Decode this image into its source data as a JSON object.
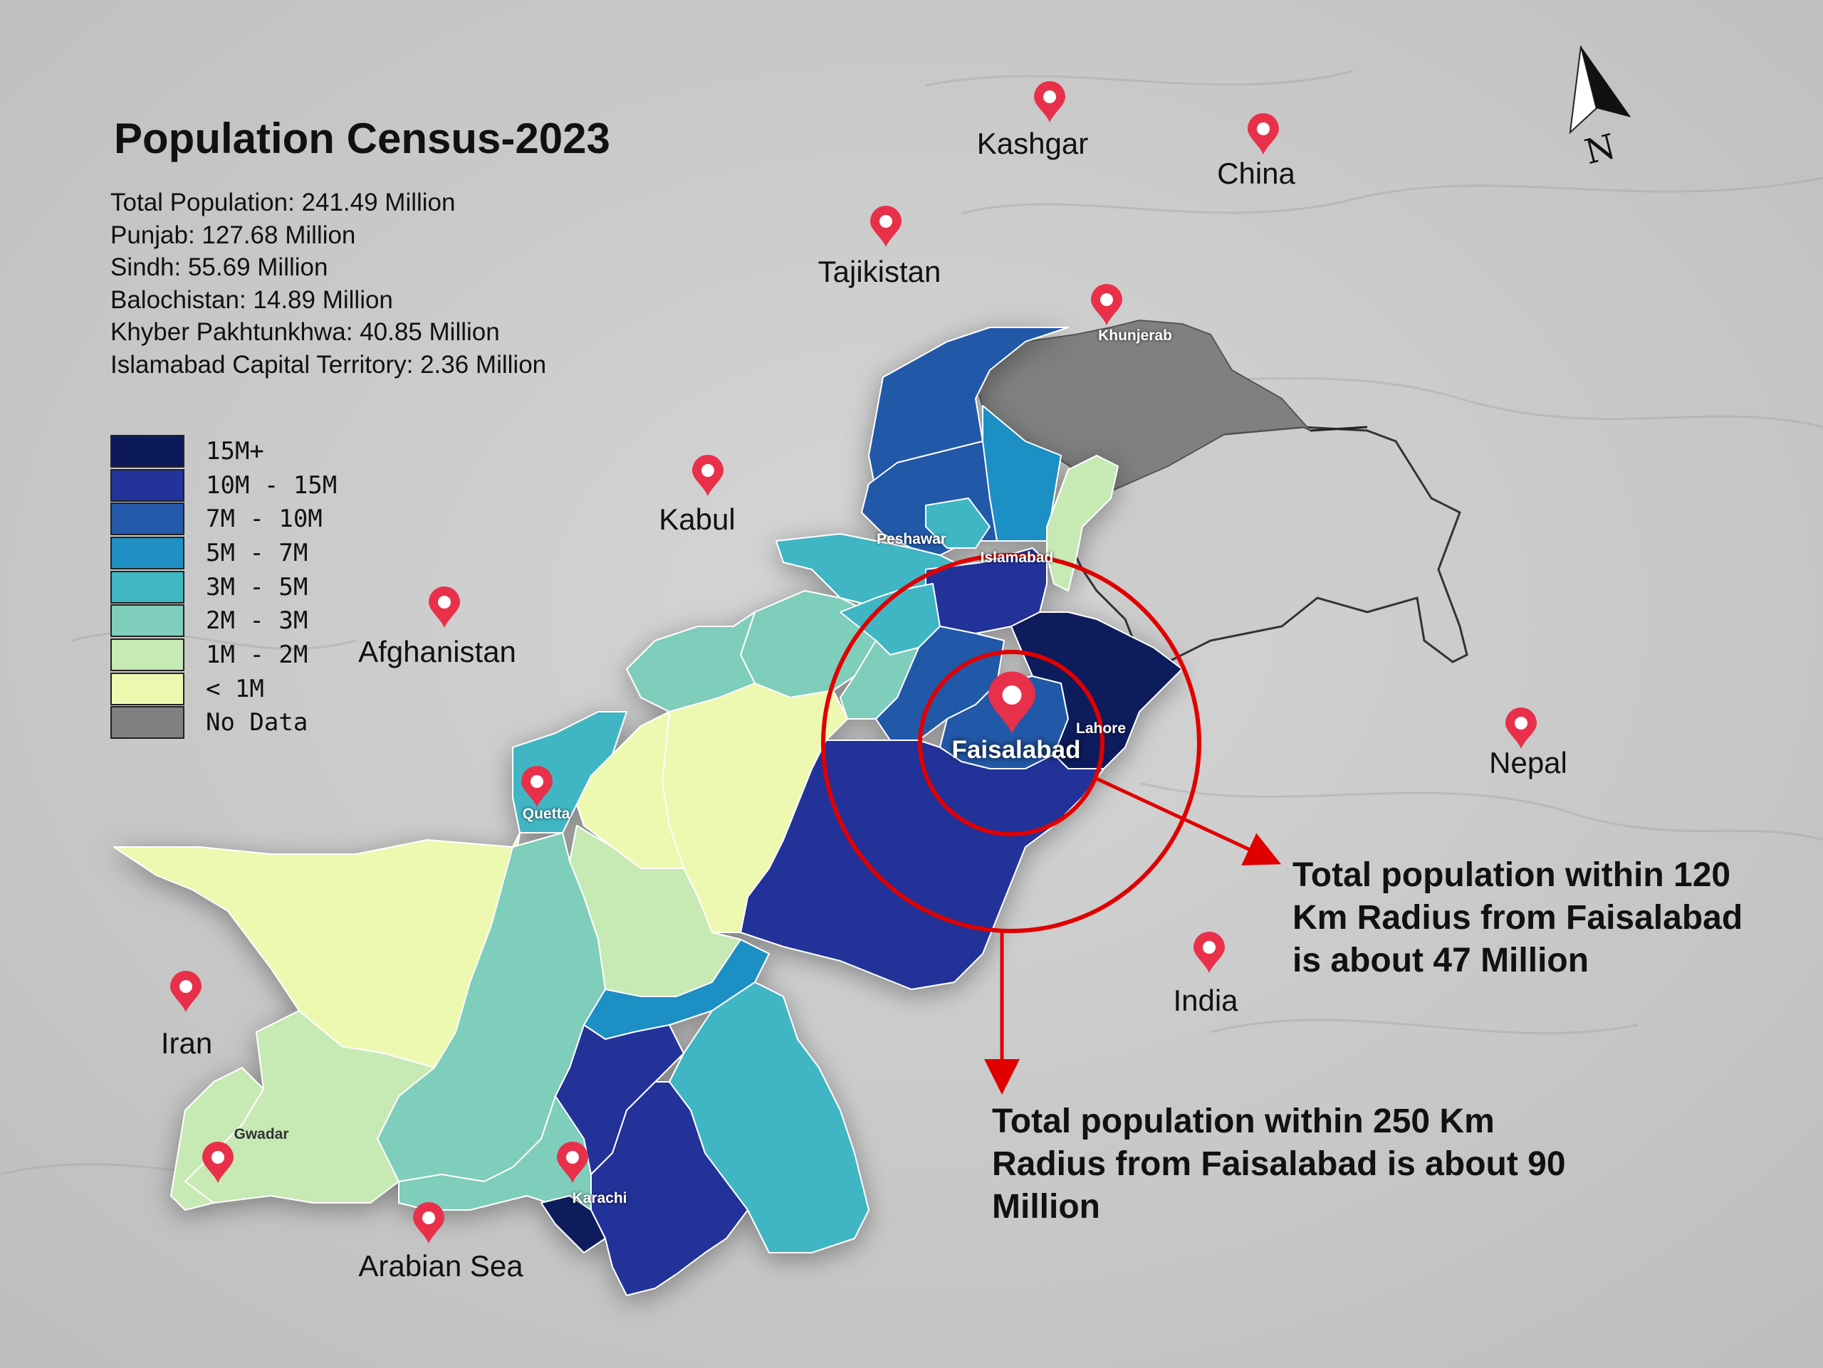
{
  "title": "Population Census-2023",
  "stats": [
    "Total Population: 241.49 Million",
    "Punjab: 127.68 Million",
    "Sindh: 55.69 Million",
    "Balochistan: 14.89 Million",
    "Khyber Pakhtunkhwa: 40.85 Million",
    "Islamabad Capital Territory: 2.36 Million"
  ],
  "legend": [
    {
      "label": "15M+",
      "color": "#0c1a5c"
    },
    {
      "label": "10M - 15M",
      "color": "#243399"
    },
    {
      "label": "7M - 10M",
      "color": "#2458a8"
    },
    {
      "label": "5M - 7M",
      "color": "#1f8fc4"
    },
    {
      "label": "3M - 5M",
      "color": "#41b6c4"
    },
    {
      "label": "2M - 3M",
      "color": "#7fcdbb"
    },
    {
      "label": "1M - 2M",
      "color": "#c7e9b4"
    },
    {
      "label": "< 1M",
      "color": "#edf8b1"
    },
    {
      "label": "No Data",
      "color": "#808080"
    }
  ],
  "places": {
    "kashgar": "Kashgar",
    "china": "China",
    "tajikistan": "Tajikistan",
    "kabul": "Kabul",
    "afghanistan": "Afghanistan",
    "iran": "Iran",
    "arabian_sea": "Arabian Sea",
    "india": "India",
    "nepal": "Nepal"
  },
  "cities": {
    "khunjerab": "Khunjerab",
    "peshawar": "Peshawar",
    "islamabad": "Islamabad",
    "lahore": "Lahore",
    "quetta": "Quetta",
    "gwadar": "Gwadar",
    "karachi": "Karachi",
    "faisalabad": "Faisalabad"
  },
  "annotations": {
    "radius_120": "Total population within 120 Km Radius from Faisalabad is about 47 Million",
    "radius_250": "Total population within 250 Km Radius from Faisalabad is about 90 Million"
  },
  "north_label": "N",
  "colors": {
    "pin": "#e8304a",
    "circle": "#e00000",
    "no_data": "#808080",
    "disputed": "#cccccc"
  }
}
